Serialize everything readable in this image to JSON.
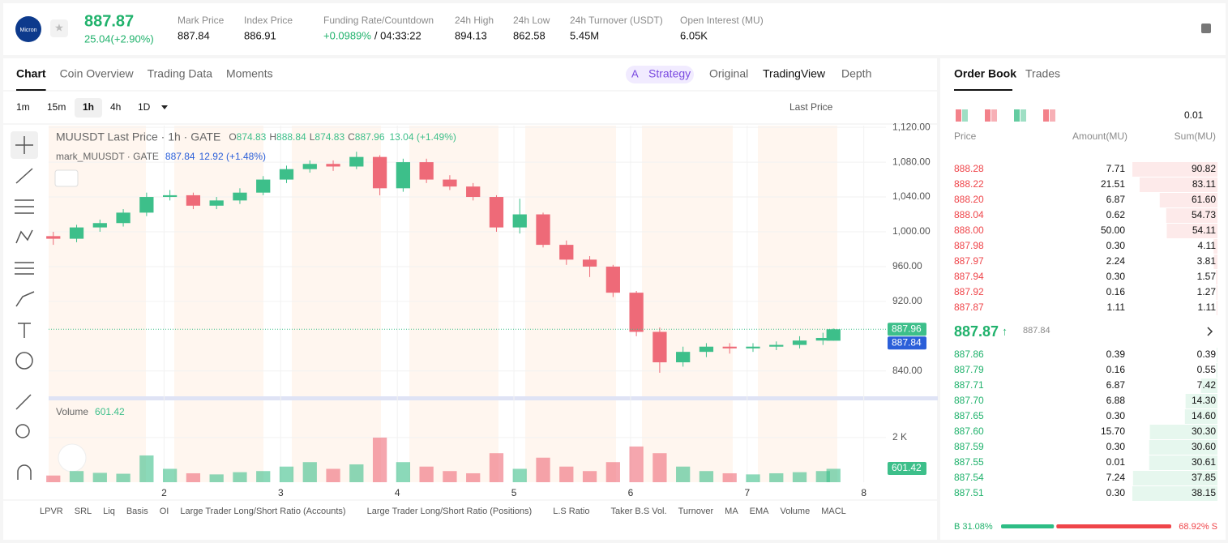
{
  "header": {
    "logo": "Micron",
    "price": "887.87",
    "change": "25.04(+2.90%)",
    "stats": [
      {
        "label": "Mark Price",
        "value": "887.84"
      },
      {
        "label": "Index Price",
        "value": "886.91"
      },
      {
        "label": "Funding Rate/Countdown",
        "value": "+0.0989%",
        "countdown": "/ 04:33:22"
      },
      {
        "label": "24h High",
        "value": "894.13"
      },
      {
        "label": "24h Low",
        "value": "862.58"
      },
      {
        "label": "24h Turnover (USDT)",
        "value": "5.45M"
      },
      {
        "label": "Open Interest (MU)",
        "value": "6.05K"
      }
    ]
  },
  "tabs": [
    "Chart",
    "Coin Overview",
    "Trading Data",
    "Moments"
  ],
  "view_tabs": [
    "Strategy",
    "Original",
    "TradingView",
    "Depth"
  ],
  "intervals": [
    "1m",
    "15m",
    "1h",
    "4h",
    "1D"
  ],
  "price_type": "Last Price",
  "legend": {
    "title": "MUUSDT Last Price · 1h · GATE",
    "ohlc": [
      {
        "label": "O",
        "value": "874.83"
      },
      {
        "label": "H",
        "value": "888.84"
      },
      {
        "label": "L",
        "value": "874.83"
      },
      {
        "label": "C",
        "value": "887.96"
      }
    ],
    "change": "13.04 (+1.49%)",
    "mark_title": "mark_MUUSDT · GATE",
    "mark_change": "12.92 (+1.48%)",
    "volume_title": "Volume"
  },
  "chart_data": {
    "type": "candlestick",
    "x": [
      1.05,
      1.25,
      1.45,
      1.65,
      1.85,
      2.05,
      2.25,
      2.45,
      2.65,
      2.85,
      3.05,
      3.25,
      3.45,
      3.65,
      3.85,
      4.05,
      4.25,
      4.45,
      4.65,
      4.85,
      5.05,
      5.25,
      5.45,
      5.65,
      5.85,
      6.05,
      6.25,
      6.45,
      6.65,
      6.85,
      7.05,
      7.25,
      7.45,
      7.65,
      7.74
    ],
    "open": [
      995,
      992,
      1005,
      1010,
      1022,
      1040,
      1042,
      1030,
      1036,
      1045,
      1060,
      1072,
      1078,
      1075,
      1086,
      1050,
      1080,
      1060,
      1052,
      1040,
      1005,
      1020,
      985,
      968,
      960,
      930,
      885,
      850,
      862,
      868,
      866,
      868,
      870,
      875,
      874.83
    ],
    "high": [
      1000,
      1008,
      1014,
      1026,
      1045,
      1048,
      1045,
      1040,
      1050,
      1064,
      1076,
      1082,
      1082,
      1092,
      1088,
      1084,
      1084,
      1065,
      1056,
      1042,
      1038,
      1022,
      990,
      972,
      962,
      932,
      890,
      868,
      872,
      872,
      872,
      874,
      880,
      884,
      888.84
    ],
    "low": [
      985,
      988,
      1000,
      1006,
      1018,
      1036,
      1026,
      1026,
      1032,
      1042,
      1056,
      1068,
      1070,
      1072,
      1042,
      1046,
      1056,
      1048,
      1036,
      1000,
      998,
      982,
      962,
      948,
      925,
      880,
      838,
      845,
      856,
      860,
      862,
      864,
      866,
      870,
      874.83
    ],
    "close": [
      992,
      1005,
      1010,
      1022,
      1040,
      1042,
      1030,
      1036,
      1045,
      1060,
      1072,
      1078,
      1075,
      1086,
      1050,
      1080,
      1060,
      1052,
      1040,
      1005,
      1020,
      985,
      968,
      960,
      930,
      885,
      850,
      862,
      868,
      866,
      868,
      870,
      875,
      878,
      887.96
    ],
    "volume": [
      300,
      500,
      420,
      380,
      1200,
      600,
      400,
      350,
      450,
      500,
      700,
      900,
      600,
      800,
      2000,
      900,
      700,
      500,
      400,
      1300,
      600,
      1100,
      700,
      500,
      900,
      1600,
      1300,
      700,
      500,
      400,
      350,
      400,
      450,
      500,
      601.42
    ],
    "mark_price": 887.84,
    "up_color": "#3dbf8a",
    "down_color": "#ee6a78",
    "mark_color": "#2b5fd9",
    "xlim": [
      1.01,
      8.19
    ],
    "xticks": [
      2,
      3,
      4,
      5,
      6,
      7,
      8
    ],
    "ylim": [
      810,
      1122
    ],
    "yticks": [
      {
        "value": 840,
        "label": "840.00"
      },
      {
        "value": 920,
        "label": "920.00"
      },
      {
        "value": 960,
        "label": "960.00"
      },
      {
        "value": 1000,
        "label": "1,000.00"
      },
      {
        "value": 1040,
        "label": "1,040.00"
      },
      {
        "value": 1080,
        "label": "1,080.00"
      },
      {
        "value": 1120,
        "label": "1,120.00"
      }
    ],
    "volume_ylim": [
      0,
      3450
    ],
    "volume_ticks": [
      {
        "value": 2000,
        "label": "2 K"
      }
    ],
    "grid": true
  },
  "indicators": [
    "LPVR",
    "SRL",
    "Liq",
    "Basis",
    "OI",
    "Large Trader Long/Short Ratio (Accounts)",
    "Large Trader Long/Short Ratio (Positions)",
    "L.S Ratio",
    "Taker B.S Vol.",
    "Turnover",
    "MA",
    "EMA",
    "Volume",
    "MACL"
  ],
  "order_book": {
    "tabs": [
      "Order Book",
      "Trades"
    ],
    "precision": "0.01",
    "columns": [
      "Price",
      "Amount(MU)",
      "Sum(MU)"
    ],
    "asks": [
      [
        "888.28",
        "7.71",
        "90.82"
      ],
      [
        "888.22",
        "21.51",
        "83.11"
      ],
      [
        "888.20",
        "6.87",
        "61.60"
      ],
      [
        "888.04",
        "0.62",
        "54.73"
      ],
      [
        "888.00",
        "50.00",
        "54.11"
      ],
      [
        "887.98",
        "0.30",
        "4.11"
      ],
      [
        "887.97",
        "2.24",
        "3.81"
      ],
      [
        "887.94",
        "0.30",
        "1.57"
      ],
      [
        "887.92",
        "0.16",
        "1.27"
      ],
      [
        "887.87",
        "1.11",
        "1.11"
      ]
    ],
    "last_price": "887.87",
    "mark_price": "887.84",
    "bids": [
      [
        "887.86",
        "0.39",
        "0.39"
      ],
      [
        "887.79",
        "0.16",
        "0.55"
      ],
      [
        "887.71",
        "6.87",
        "7.42"
      ],
      [
        "887.70",
        "6.88",
        "14.30"
      ],
      [
        "887.65",
        "0.30",
        "14.60"
      ],
      [
        "887.60",
        "15.70",
        "30.30"
      ],
      [
        "887.59",
        "0.30",
        "30.60"
      ],
      [
        "887.55",
        "0.01",
        "30.61"
      ],
      [
        "887.54",
        "7.24",
        "37.85"
      ],
      [
        "887.51",
        "0.30",
        "38.15"
      ]
    ],
    "buy_ratio": "B 31.08%",
    "sell_ratio": "68.92% S",
    "buy_share": 31.08
  }
}
